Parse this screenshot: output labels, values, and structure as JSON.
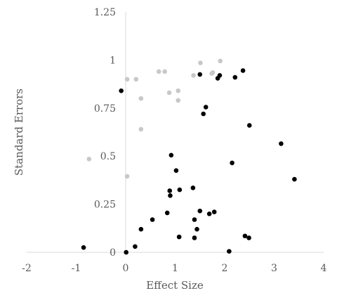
{
  "chart_data": {
    "type": "scatter",
    "title": "",
    "xlabel": "Effect Size",
    "ylabel": "Standard Errors",
    "xlim": [
      -2,
      4
    ],
    "ylim": [
      0,
      1.25
    ],
    "x_ticks": [
      "-2",
      "-1",
      "0",
      "1",
      "2",
      "3",
      "4"
    ],
    "y_ticks": [
      "0",
      "0.25",
      "0.5",
      "0.75",
      "1",
      "1.25"
    ],
    "grid": false,
    "legend": "none",
    "series": [
      {
        "color": "#c8c8c8",
        "points": [
          {
            "x": -0.74,
            "y": 0.485
          },
          {
            "x": 0.03,
            "y": 0.395
          },
          {
            "x": 0.31,
            "y": 0.64
          },
          {
            "x": 0.31,
            "y": 0.8
          },
          {
            "x": 0.03,
            "y": 0.9
          },
          {
            "x": 0.21,
            "y": 0.9
          },
          {
            "x": 0.67,
            "y": 0.94
          },
          {
            "x": 0.79,
            "y": 0.94
          },
          {
            "x": 0.88,
            "y": 0.83
          },
          {
            "x": 1.06,
            "y": 0.84
          },
          {
            "x": 1.06,
            "y": 0.79
          },
          {
            "x": 1.37,
            "y": 0.92
          },
          {
            "x": 1.51,
            "y": 0.985
          },
          {
            "x": 1.74,
            "y": 0.93
          },
          {
            "x": 1.76,
            "y": 0.935
          },
          {
            "x": 1.91,
            "y": 0.995
          }
        ]
      },
      {
        "color": "#000000",
        "points": [
          {
            "x": -0.85,
            "y": 0.025
          },
          {
            "x": -0.09,
            "y": 0.84
          },
          {
            "x": 0.01,
            "y": 0.0
          },
          {
            "x": 0.19,
            "y": 0.03
          },
          {
            "x": 0.31,
            "y": 0.12
          },
          {
            "x": 0.54,
            "y": 0.17
          },
          {
            "x": 0.84,
            "y": 0.205
          },
          {
            "x": 0.89,
            "y": 0.32
          },
          {
            "x": 0.9,
            "y": 0.295
          },
          {
            "x": 0.92,
            "y": 0.505
          },
          {
            "x": 1.02,
            "y": 0.425
          },
          {
            "x": 1.08,
            "y": 0.08
          },
          {
            "x": 1.09,
            "y": 0.325
          },
          {
            "x": 1.36,
            "y": 0.335
          },
          {
            "x": 1.39,
            "y": 0.17
          },
          {
            "x": 1.39,
            "y": 0.075
          },
          {
            "x": 1.44,
            "y": 0.12
          },
          {
            "x": 1.5,
            "y": 0.215
          },
          {
            "x": 1.5,
            "y": 0.925
          },
          {
            "x": 1.57,
            "y": 0.72
          },
          {
            "x": 1.62,
            "y": 0.755
          },
          {
            "x": 1.69,
            "y": 0.2
          },
          {
            "x": 1.79,
            "y": 0.21
          },
          {
            "x": 1.86,
            "y": 0.905
          },
          {
            "x": 1.9,
            "y": 0.92
          },
          {
            "x": 2.09,
            "y": 0.005
          },
          {
            "x": 2.15,
            "y": 0.465
          },
          {
            "x": 2.21,
            "y": 0.91
          },
          {
            "x": 2.37,
            "y": 0.945
          },
          {
            "x": 2.41,
            "y": 0.085
          },
          {
            "x": 2.49,
            "y": 0.075
          },
          {
            "x": 2.5,
            "y": 0.66
          },
          {
            "x": 3.14,
            "y": 0.565
          },
          {
            "x": 3.41,
            "y": 0.38
          }
        ]
      }
    ]
  }
}
